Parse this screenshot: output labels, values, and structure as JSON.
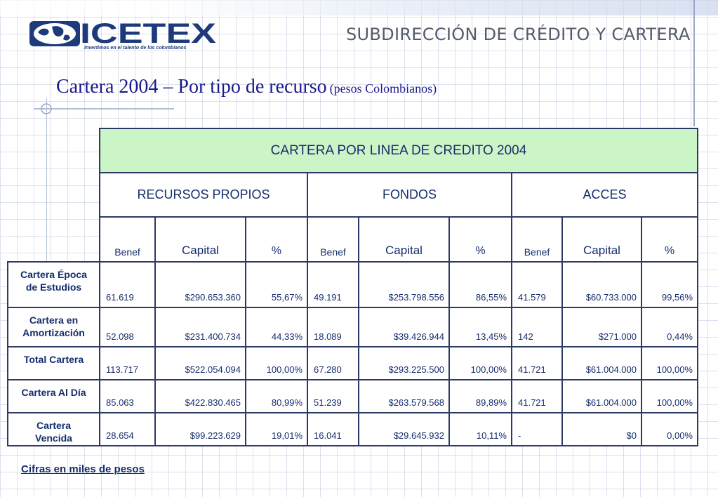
{
  "header": {
    "logo_text": "ICETEX",
    "logo_tagline": "Invertimos en el talento de los colombianos",
    "subtitle": "SUBDIRECCIÓN DE CRÉDITO Y CARTERA"
  },
  "title": {
    "main": "Cartera 2004 – Por tipo de recurso",
    "qualifier": "(pesos Colombianos)"
  },
  "table": {
    "caption": "CARTERA POR LINEA DE CREDITO 2004",
    "groups": [
      "RECURSOS PROPIOS",
      "FONDOS",
      "ACCES"
    ],
    "columns": [
      "Benef",
      "Capital",
      "%"
    ],
    "rows": [
      {
        "label_lines": [
          "Cartera Época",
          "de Estudios"
        ],
        "values": [
          "61.619",
          "$290.653.360",
          "55,67%",
          "49.191",
          "$253.798.556",
          "86,55%",
          "41.579",
          "$60.733.000",
          "99,56%"
        ]
      },
      {
        "label_lines": [
          "Cartera en",
          "Amortización"
        ],
        "values": [
          "52.098",
          "$231.400.734",
          "44,33%",
          "18.089",
          "$39.426.944",
          "13,45%",
          "142",
          "$271.000",
          "0,44%"
        ]
      },
      {
        "label_lines": [
          "Total Cartera"
        ],
        "values": [
          "113.717",
          "$522.054.094",
          "100,00%",
          "67.280",
          "$293.225.500",
          "100,00%",
          "41.721",
          "$61.004.000",
          "100,00%"
        ]
      },
      {
        "label_lines": [
          "Cartera Al Día"
        ],
        "values": [
          "85.063",
          "$422.830.465",
          "80,99%",
          "51.239",
          "$263.579.568",
          "89,89%",
          "41.721",
          "$61.004.000",
          "100,00%"
        ]
      },
      {
        "label_lines": [
          "Cartera",
          "Vencida"
        ],
        "values": [
          "28.654",
          "$99.223.629",
          "19,01%",
          "16.041",
          "$29.645.932",
          "10,11%",
          "-",
          "$0",
          "0,00%"
        ]
      }
    ]
  },
  "footnote": "Cifras en miles de pesos",
  "colors": {
    "title": "#1a1a8c",
    "table_text": "#152d6d",
    "header_fill": "#ccf5c7",
    "border": "#2e3a66",
    "logo": "#1d3a7a"
  }
}
